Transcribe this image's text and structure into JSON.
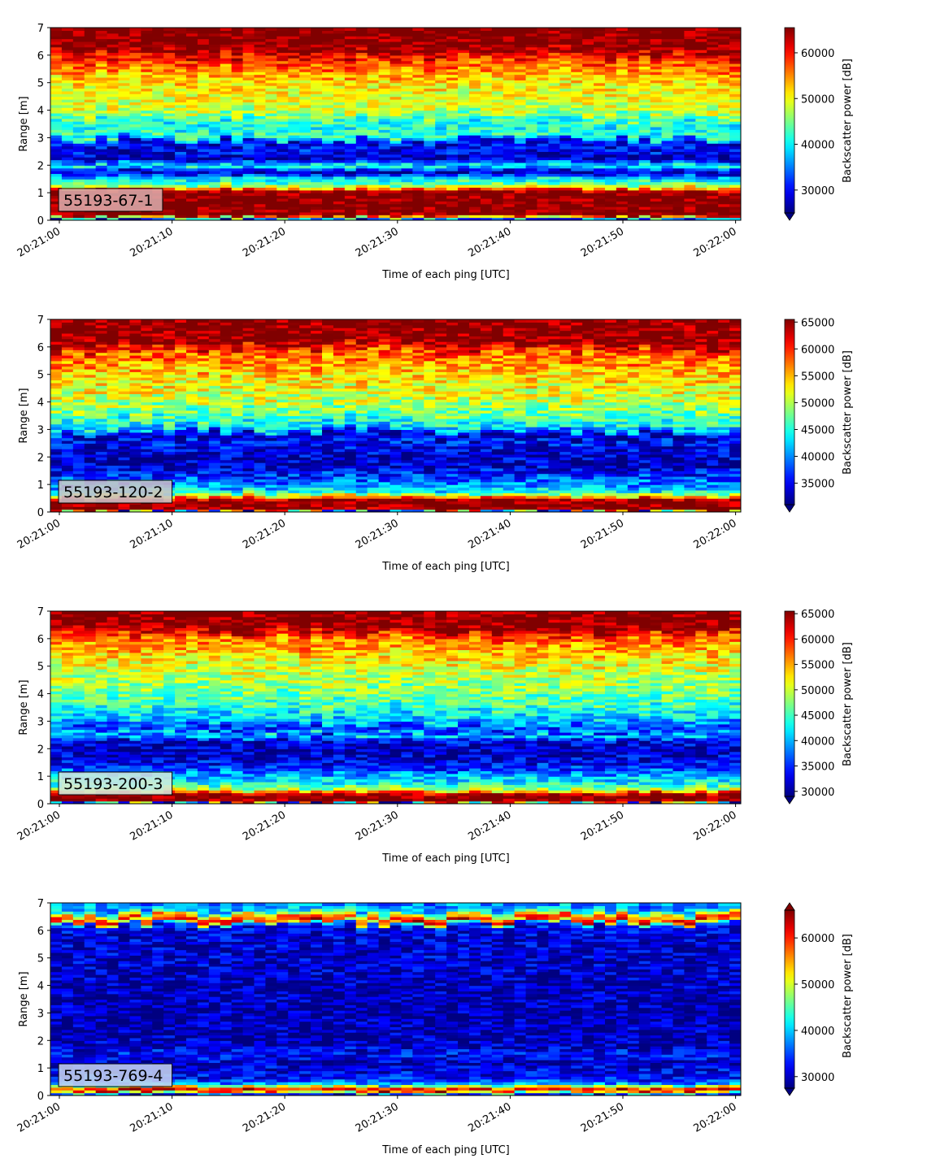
{
  "chart_data": [
    {
      "type": "heatmap",
      "label": "55193-67-1",
      "xlabel": "Time of each ping [UTC]",
      "ylabel": "Range [m]",
      "colorbar_label": "Backscatter power [dB]",
      "xticks": [
        "20:21:00",
        "20:21:10",
        "20:21:20",
        "20:21:30",
        "20:21:40",
        "20:21:50",
        "20:22:00"
      ],
      "yticks": [
        0,
        1,
        2,
        3,
        4,
        5,
        6,
        7
      ],
      "ylim": [
        0,
        7
      ],
      "clim": [
        25000,
        65500
      ],
      "cbar_ticks": [
        30000,
        40000,
        50000,
        60000
      ],
      "extend": "min",
      "label_bg": "#d9aaaa",
      "profile": [
        [
          0.0,
          25000
        ],
        [
          0.2,
          65500
        ],
        [
          1.05,
          65500
        ],
        [
          1.15,
          55000
        ],
        [
          1.3,
          45000
        ],
        [
          1.55,
          39000
        ],
        [
          1.75,
          26000
        ],
        [
          2.0,
          41000
        ],
        [
          2.25,
          27000
        ],
        [
          2.55,
          31000
        ],
        [
          2.85,
          28000
        ],
        [
          3.05,
          43000
        ],
        [
          3.5,
          40000
        ],
        [
          4.0,
          48000
        ],
        [
          5.0,
          51000
        ],
        [
          5.8,
          58000
        ],
        [
          6.3,
          65500
        ],
        [
          7.0,
          65500
        ]
      ]
    },
    {
      "type": "heatmap",
      "label": "55193-120-2",
      "xlabel": "Time of each ping [UTC]",
      "ylabel": "Range [m]",
      "colorbar_label": "Backscatter power [dB]",
      "xticks": [
        "20:21:00",
        "20:21:10",
        "20:21:20",
        "20:21:30",
        "20:21:40",
        "20:21:50",
        "20:22:00"
      ],
      "yticks": [
        0,
        1,
        2,
        3,
        4,
        5,
        6,
        7
      ],
      "ylim": [
        0,
        7
      ],
      "clim": [
        31000,
        65500
      ],
      "cbar_ticks": [
        35000,
        40000,
        45000,
        50000,
        55000,
        60000,
        65000
      ],
      "extend": "min",
      "label_bg": "#c9c3c8",
      "profile": [
        [
          0.0,
          31000
        ],
        [
          0.1,
          65500
        ],
        [
          0.45,
          65500
        ],
        [
          0.6,
          52000
        ],
        [
          0.75,
          44000
        ],
        [
          1.0,
          40000
        ],
        [
          1.4,
          36000
        ],
        [
          1.8,
          33000
        ],
        [
          2.2,
          34000
        ],
        [
          2.6,
          36000
        ],
        [
          2.8,
          32000
        ],
        [
          3.0,
          42000
        ],
        [
          3.5,
          47000
        ],
        [
          4.2,
          51000
        ],
        [
          5.0,
          54000
        ],
        [
          5.8,
          58000
        ],
        [
          6.2,
          65500
        ],
        [
          7.0,
          65500
        ]
      ]
    },
    {
      "type": "heatmap",
      "label": "55193-200-3",
      "xlabel": "Time of each ping [UTC]",
      "ylabel": "Range [m]",
      "colorbar_label": "Backscatter power [dB]",
      "xticks": [
        "20:21:00",
        "20:21:10",
        "20:21:20",
        "20:21:30",
        "20:21:40",
        "20:21:50",
        "20:22:00"
      ],
      "yticks": [
        0,
        1,
        2,
        3,
        4,
        5,
        6,
        7
      ],
      "ylim": [
        0,
        7
      ],
      "clim": [
        29000,
        65500
      ],
      "cbar_ticks": [
        30000,
        35000,
        40000,
        45000,
        50000,
        55000,
        60000,
        65000
      ],
      "extend": "min",
      "label_bg": "#cfe8de",
      "profile": [
        [
          0.0,
          29000
        ],
        [
          0.1,
          65500
        ],
        [
          0.35,
          65500
        ],
        [
          0.5,
          50000
        ],
        [
          0.7,
          44000
        ],
        [
          1.0,
          40000
        ],
        [
          1.4,
          34000
        ],
        [
          1.9,
          31000
        ],
        [
          2.3,
          33000
        ],
        [
          2.5,
          42000
        ],
        [
          2.7,
          34000
        ],
        [
          3.0,
          40000
        ],
        [
          3.6,
          45000
        ],
        [
          4.3,
          48000
        ],
        [
          5.2,
          52000
        ],
        [
          6.0,
          57000
        ],
        [
          6.4,
          65500
        ],
        [
          7.0,
          65500
        ]
      ]
    },
    {
      "type": "heatmap",
      "label": "55193-769-4",
      "xlabel": "Time of each ping [UTC]",
      "ylabel": "Range [m]",
      "colorbar_label": "Backscatter power [dB]",
      "xticks": [
        "20:21:00",
        "20:21:10",
        "20:21:20",
        "20:21:30",
        "20:21:40",
        "20:21:50",
        "20:22:00"
      ],
      "yticks": [
        0,
        1,
        2,
        3,
        4,
        5,
        6,
        7
      ],
      "ylim": [
        0,
        7
      ],
      "clim": [
        27500,
        66000
      ],
      "cbar_ticks": [
        30000,
        40000,
        50000,
        60000
      ],
      "extend": "both",
      "label_bg": "#c4d2ee",
      "profile": [
        [
          0.0,
          27500
        ],
        [
          0.2,
          64000
        ],
        [
          0.3,
          56000
        ],
        [
          0.4,
          40000
        ],
        [
          0.6,
          33000
        ],
        [
          1.2,
          30000
        ],
        [
          1.5,
          33000
        ],
        [
          1.8,
          30000
        ],
        [
          3.0,
          29000
        ],
        [
          4.5,
          30000
        ],
        [
          5.8,
          31000
        ],
        [
          6.2,
          33000
        ],
        [
          6.35,
          62000
        ],
        [
          6.5,
          56000
        ],
        [
          6.7,
          40000
        ],
        [
          7.0,
          37000
        ]
      ]
    }
  ]
}
